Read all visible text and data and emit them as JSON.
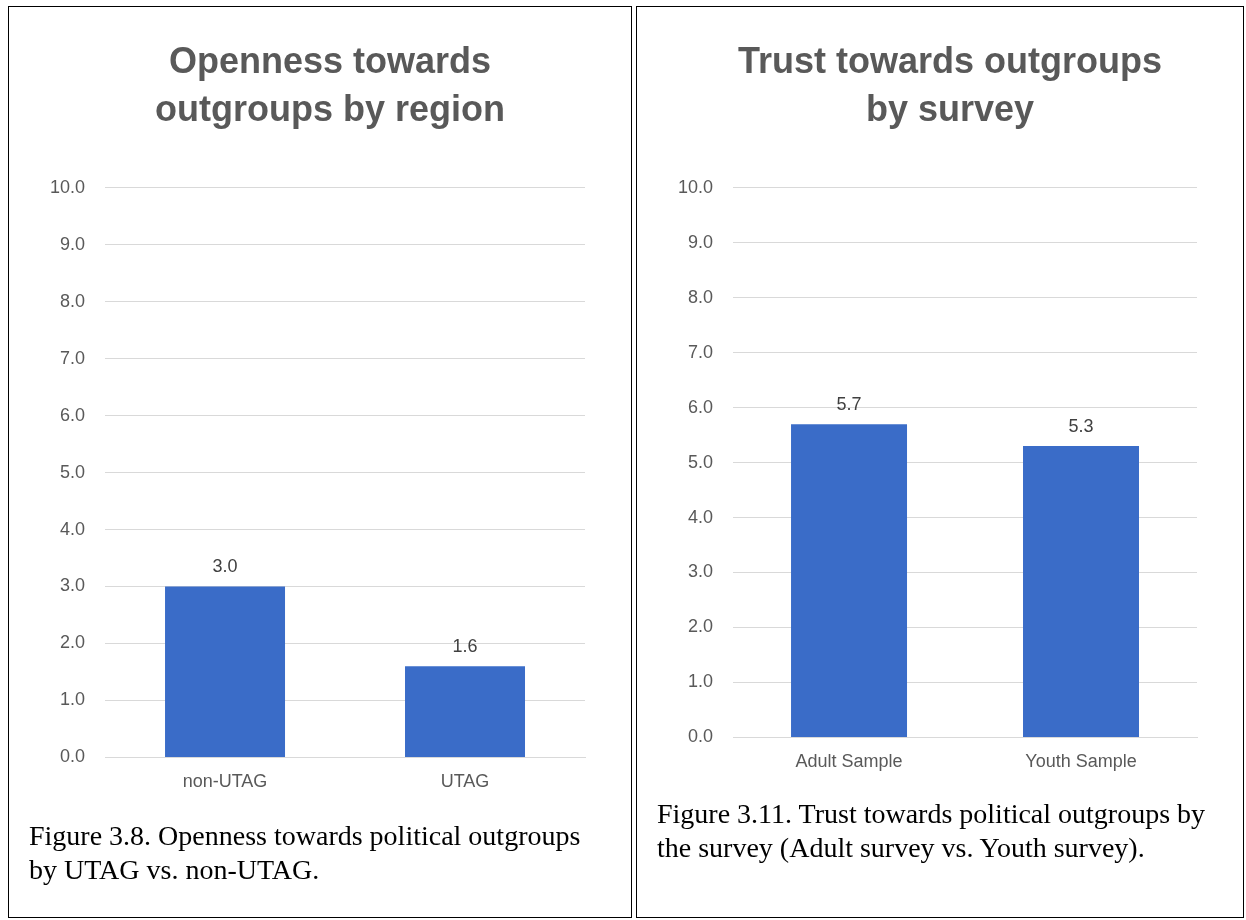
{
  "chart_data": [
    {
      "type": "bar",
      "title": "Openness towards outgroups by region",
      "categories": [
        "non-UTAG",
        "UTAG"
      ],
      "values": [
        3.0,
        1.6
      ],
      "value_labels": [
        "3.0",
        "1.6"
      ],
      "color": "#3a6cc8",
      "ylim": [
        0,
        10
      ],
      "yticks": [
        {
          "value": 0,
          "label": "0.0"
        },
        {
          "value": 1,
          "label": "1.0"
        },
        {
          "value": 2,
          "label": "2.0"
        },
        {
          "value": 3,
          "label": "3.0"
        },
        {
          "value": 4,
          "label": "4.0"
        },
        {
          "value": 5,
          "label": "5.0"
        },
        {
          "value": 6,
          "label": "6.0"
        },
        {
          "value": 7,
          "label": "7.0"
        },
        {
          "value": 8,
          "label": "8.0"
        },
        {
          "value": 9,
          "label": "9.0"
        },
        {
          "value": 10,
          "label": "10.0"
        }
      ],
      "grid": "y",
      "annotations": [
        "Figure 3.8. Openness towards political outgroups by UTAG vs. non-UTAG."
      ]
    },
    {
      "type": "bar",
      "title": "Trust towards outgroups by survey",
      "categories": [
        "Adult Sample",
        "Youth Sample"
      ],
      "values": [
        5.7,
        5.3
      ],
      "value_labels": [
        "5.7",
        "5.3"
      ],
      "color": "#3a6cc8",
      "ylim": [
        0,
        10
      ],
      "yticks": [
        {
          "value": 0,
          "label": "0.0"
        },
        {
          "value": 1,
          "label": "1.0"
        },
        {
          "value": 2,
          "label": "2.0"
        },
        {
          "value": 3,
          "label": "3.0"
        },
        {
          "value": 4,
          "label": "4.0"
        },
        {
          "value": 5,
          "label": "5.0"
        },
        {
          "value": 6,
          "label": "6.0"
        },
        {
          "value": 7,
          "label": "7.0"
        },
        {
          "value": 8,
          "label": "8.0"
        },
        {
          "value": 9,
          "label": "9.0"
        },
        {
          "value": 10,
          "label": "10.0"
        }
      ],
      "grid": "y",
      "annotations": [
        "Figure 3.11. Trust towards political outgroups by the survey (Adult survey vs. Youth survey)."
      ]
    }
  ]
}
